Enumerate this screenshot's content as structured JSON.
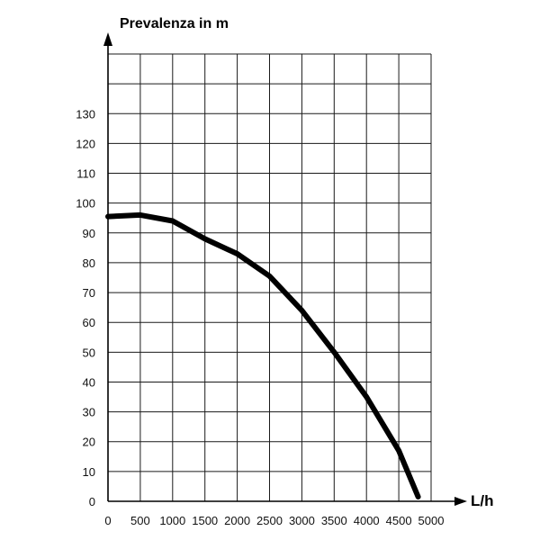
{
  "chart_data": {
    "type": "line",
    "ylabel": "Prevalenza in m",
    "xlabel": "L/h",
    "xlim": [
      0,
      5000
    ],
    "ylim": [
      0,
      150
    ],
    "x_ticks": [
      0,
      500,
      1000,
      1500,
      2000,
      2500,
      3000,
      3500,
      4000,
      4500,
      5000
    ],
    "y_ticks": [
      0,
      10,
      20,
      30,
      40,
      50,
      60,
      70,
      80,
      90,
      100,
      110,
      120,
      130
    ],
    "grid": true,
    "series": [
      {
        "color": "#000000",
        "x": [
          0,
          500,
          1000,
          1500,
          2000,
          2500,
          3000,
          3500,
          4000,
          4500,
          4800
        ],
        "y": [
          95.5,
          96,
          94,
          88,
          83,
          75.5,
          64,
          50,
          35,
          17,
          1.5
        ]
      }
    ]
  }
}
